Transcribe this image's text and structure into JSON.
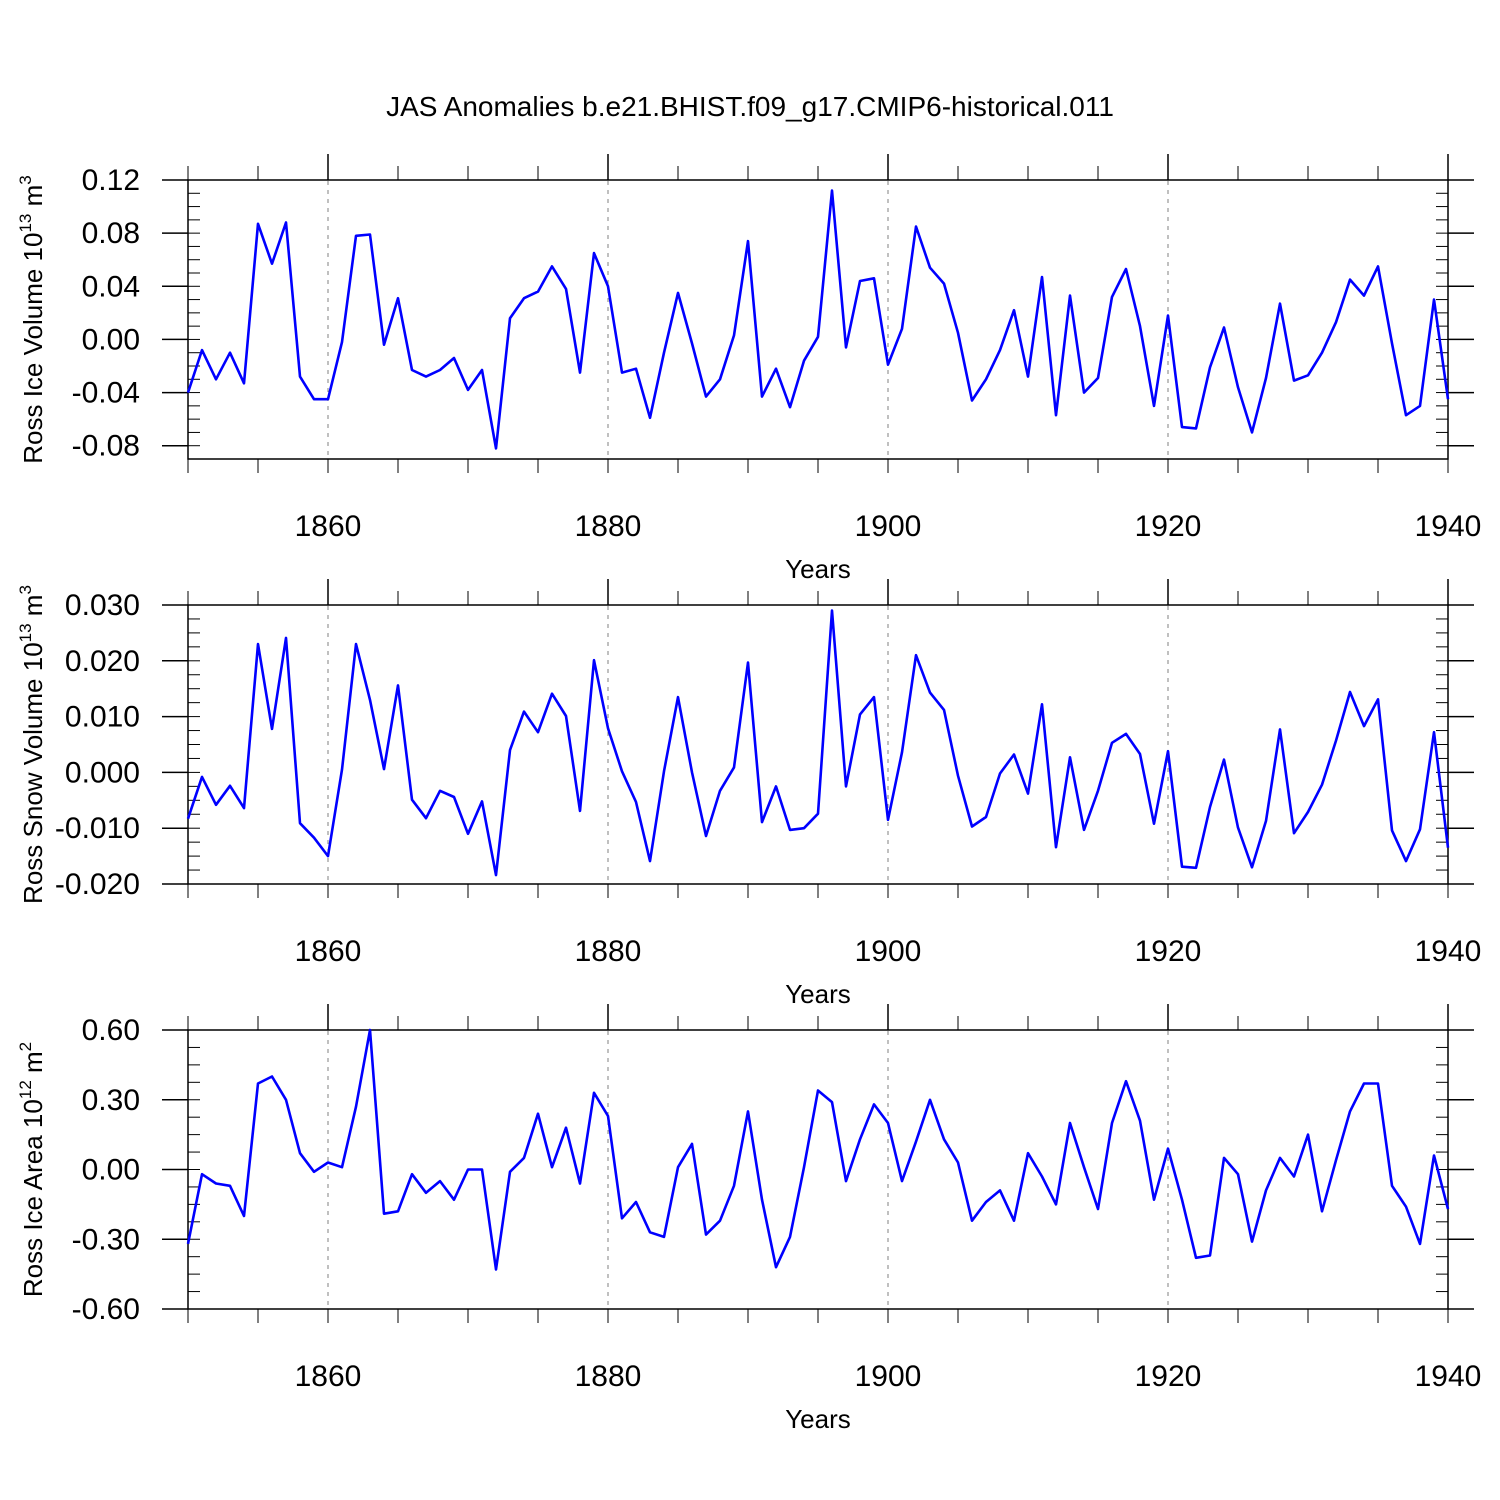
{
  "title": "JAS Anomalies b.e21.BHIST.f09_g17.CMIP6-historical.011",
  "colors": {
    "line": "#0000ff",
    "axis": "#000000",
    "grid": "#808080"
  },
  "chart_data": [
    {
      "type": "line",
      "ylabel_text": "Ross Ice Volume 10",
      "ylabel_exp": "13",
      "ylabel_unit": " m",
      "ylabel_unit_exp": "3",
      "xlabel": "Years",
      "xlim": [
        1850,
        1940
      ],
      "ylim": [
        -0.09,
        0.12
      ],
      "yticks": [
        "0.12",
        "0.08",
        "0.04",
        "0.00",
        "-0.04",
        "-0.08"
      ],
      "ytick_values": [
        0.12,
        0.08,
        0.04,
        0.0,
        -0.04,
        -0.08
      ],
      "xticks": [
        "1860",
        "1880",
        "1900",
        "1920",
        "1940"
      ],
      "xtick_values": [
        1860,
        1880,
        1900,
        1920,
        1940
      ],
      "series": [
        {
          "name": "Ross Ice Volume",
          "x_start": 1850,
          "values": [
            -0.04,
            -0.008,
            -0.03,
            -0.01,
            -0.033,
            0.087,
            0.057,
            0.088,
            -0.028,
            -0.045,
            -0.045,
            -0.002,
            0.078,
            0.079,
            -0.004,
            0.031,
            -0.023,
            -0.028,
            -0.023,
            -0.014,
            -0.038,
            -0.023,
            -0.082,
            0.016,
            0.031,
            0.036,
            0.055,
            0.038,
            -0.025,
            0.065,
            0.04,
            -0.025,
            -0.022,
            -0.059,
            -0.01,
            0.035,
            -0.003,
            -0.043,
            -0.03,
            0.003,
            0.074,
            -0.043,
            -0.022,
            -0.051,
            -0.016,
            0.002,
            0.112,
            -0.006,
            0.044,
            0.046,
            -0.019,
            0.008,
            0.085,
            0.054,
            0.042,
            0.005,
            -0.046,
            -0.03,
            -0.008,
            0.022,
            -0.028,
            0.047,
            -0.057,
            0.033,
            -0.04,
            -0.029,
            0.032,
            0.053,
            0.01,
            -0.05,
            0.018,
            -0.066,
            -0.067,
            -0.021,
            0.009,
            -0.036,
            -0.07,
            -0.029,
            0.027,
            -0.031,
            -0.027,
            -0.01,
            0.013,
            0.045,
            0.033,
            0.055,
            -0.003,
            -0.057,
            -0.05,
            0.03,
            -0.045
          ]
        }
      ]
    },
    {
      "type": "line",
      "ylabel_text": "Ross Snow Volume 10",
      "ylabel_exp": "13",
      "ylabel_unit": " m",
      "ylabel_unit_exp": "3",
      "xlabel": "Years",
      "xlim": [
        1850,
        1940
      ],
      "ylim": [
        -0.02,
        0.03
      ],
      "yticks": [
        "0.030",
        "0.020",
        "0.010",
        "0.000",
        "-0.010",
        "-0.020"
      ],
      "ytick_values": [
        0.03,
        0.02,
        0.01,
        0.0,
        -0.01,
        -0.02
      ],
      "xticks": [
        "1860",
        "1880",
        "1900",
        "1920",
        "1940"
      ],
      "xtick_values": [
        1860,
        1880,
        1900,
        1920,
        1940
      ],
      "series": [
        {
          "name": "Ross Snow Volume",
          "x_start": 1850,
          "values": [
            -0.0083,
            -0.0008,
            -0.0058,
            -0.0024,
            -0.0064,
            0.023,
            0.0078,
            0.0241,
            -0.0091,
            -0.0117,
            -0.015,
            0.0005,
            0.023,
            0.013,
            0.0006,
            0.0156,
            -0.0049,
            -0.0082,
            -0.0033,
            -0.0044,
            -0.011,
            -0.0052,
            -0.0184,
            0.004,
            0.0109,
            0.0072,
            0.0141,
            0.0101,
            -0.0069,
            0.0201,
            0.0079,
            0.0002,
            -0.0053,
            -0.0159,
            0.0002,
            0.0135,
            0.0,
            -0.0114,
            -0.0033,
            0.0009,
            0.0197,
            -0.0089,
            -0.0025,
            -0.0103,
            -0.01,
            -0.0074,
            0.029,
            -0.0025,
            0.0104,
            0.0135,
            -0.0085,
            0.0036,
            0.021,
            0.0143,
            0.0112,
            -0.0006,
            -0.0097,
            -0.008,
            -0.0002,
            0.0032,
            -0.0038,
            0.0122,
            -0.0134,
            0.0027,
            -0.0103,
            -0.0033,
            0.0053,
            0.0069,
            0.0033,
            -0.0092,
            0.0038,
            -0.0169,
            -0.0171,
            -0.0062,
            0.0023,
            -0.0099,
            -0.017,
            -0.0087,
            0.0077,
            -0.0109,
            -0.0071,
            -0.0022,
            0.0057,
            0.0144,
            0.0083,
            0.0131,
            -0.0104,
            -0.0159,
            -0.0102,
            0.0072,
            -0.0135
          ]
        }
      ]
    },
    {
      "type": "line",
      "ylabel_text": "Ross Ice Area 10",
      "ylabel_exp": "12",
      "ylabel_unit": " m",
      "ylabel_unit_exp": "2",
      "xlabel": "Years",
      "xlim": [
        1850,
        1940
      ],
      "ylim": [
        -0.6,
        0.6
      ],
      "yticks": [
        "0.60",
        "0.30",
        "0.00",
        "-0.30",
        "-0.60"
      ],
      "ytick_values": [
        0.6,
        0.3,
        0.0,
        -0.3,
        -0.6
      ],
      "xticks": [
        "1860",
        "1880",
        "1900",
        "1920",
        "1940"
      ],
      "xtick_values": [
        1860,
        1880,
        1900,
        1920,
        1940
      ],
      "series": [
        {
          "name": "Ross Ice Area",
          "x_start": 1850,
          "values": [
            -0.32,
            -0.02,
            -0.06,
            -0.07,
            -0.2,
            0.37,
            0.4,
            0.3,
            0.07,
            -0.01,
            0.03,
            0.01,
            0.27,
            0.6,
            -0.19,
            -0.18,
            -0.02,
            -0.1,
            -0.05,
            -0.13,
            0.0,
            0.0,
            -0.43,
            -0.01,
            0.05,
            0.24,
            0.01,
            0.18,
            -0.06,
            0.33,
            0.23,
            -0.21,
            -0.14,
            -0.27,
            -0.29,
            0.01,
            0.11,
            -0.28,
            -0.22,
            -0.07,
            0.25,
            -0.13,
            -0.42,
            -0.29,
            0.01,
            0.34,
            0.29,
            -0.05,
            0.13,
            0.28,
            0.2,
            -0.05,
            0.12,
            0.3,
            0.13,
            0.03,
            -0.22,
            -0.14,
            -0.09,
            -0.22,
            0.07,
            -0.03,
            -0.15,
            0.2,
            0.01,
            -0.17,
            0.2,
            0.38,
            0.21,
            -0.13,
            0.09,
            -0.13,
            -0.38,
            -0.37,
            0.05,
            -0.02,
            -0.31,
            -0.09,
            0.05,
            -0.03,
            0.15,
            -0.18,
            0.04,
            0.25,
            0.37,
            0.37,
            -0.07,
            -0.16,
            -0.32,
            0.06,
            -0.17
          ]
        }
      ]
    }
  ]
}
